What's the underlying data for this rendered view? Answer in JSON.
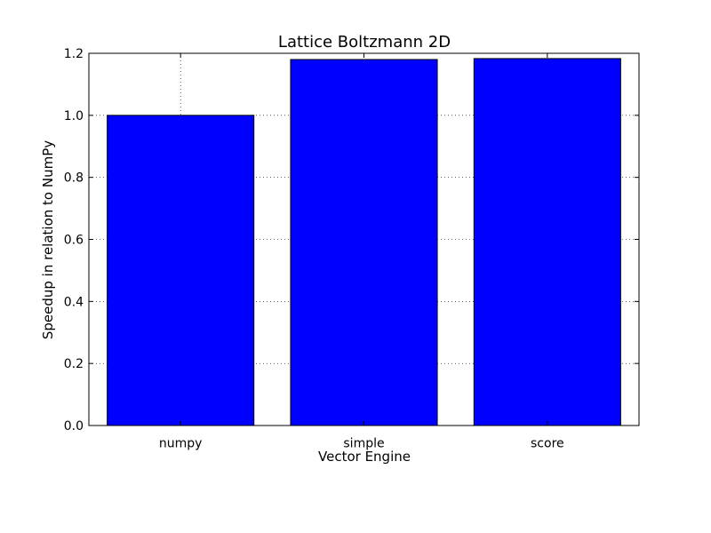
{
  "chart_data": {
    "type": "bar",
    "title": "Lattice Boltzmann 2D",
    "xlabel": "Vector Engine",
    "ylabel": "Speedup in relation to NumPy",
    "categories": [
      "numpy",
      "simple",
      "score"
    ],
    "values": [
      1.0,
      1.18,
      1.183
    ],
    "ylim": [
      0,
      1.2
    ],
    "yticks": [
      "0.0",
      "0.2",
      "0.4",
      "0.6",
      "0.8",
      "1.0",
      "1.2"
    ],
    "grid": true,
    "bar_color": "#0000ff",
    "edge_color": "#000000"
  }
}
